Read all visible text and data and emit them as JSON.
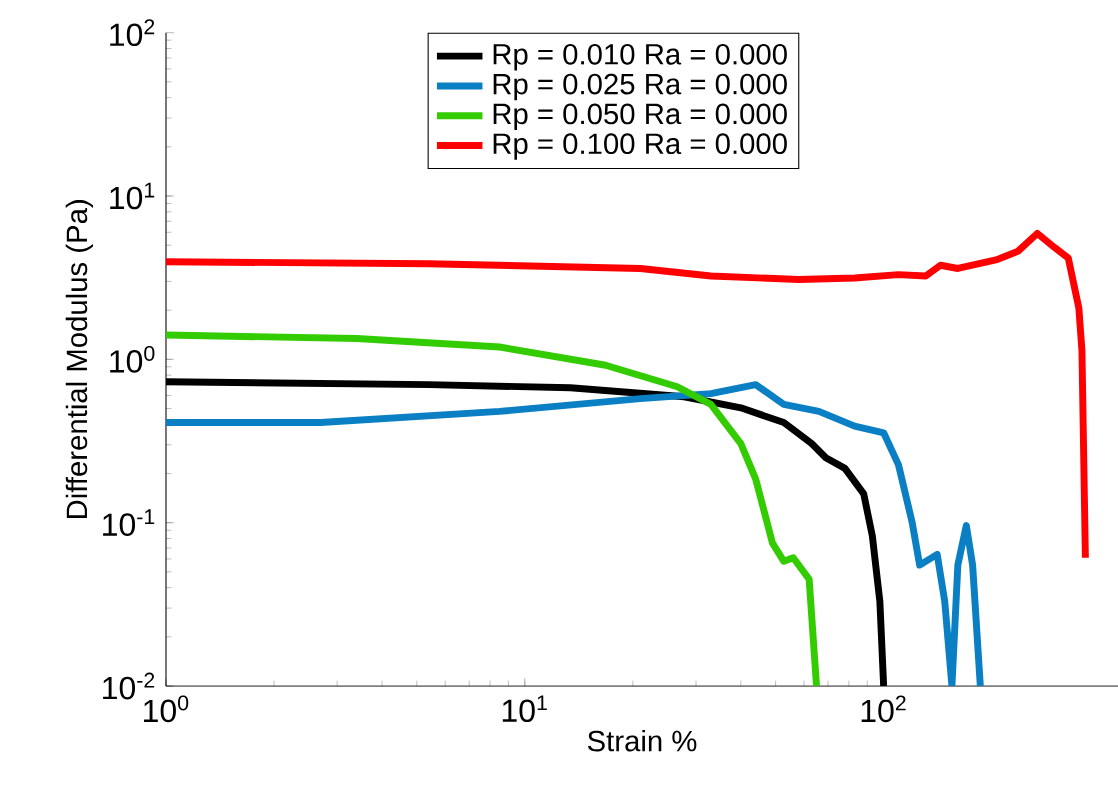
{
  "chart_data": {
    "type": "line",
    "xlabel": "Strain %",
    "ylabel": "Differential Modulus (Pa)",
    "log": "xy",
    "legend": "top",
    "grid": false,
    "xlim": [
      1,
      450
    ],
    "ylim": [
      0.01,
      100
    ],
    "xticks": [
      {
        "value": 1,
        "label": "10$^{0}$"
      },
      {
        "value": 10,
        "label": "10$^{1}$"
      },
      {
        "value": 100,
        "label": "10$^{2}$"
      }
    ],
    "yticks": [
      {
        "value": 0.01,
        "label": "10$^{-2}$"
      },
      {
        "value": 0.1,
        "label": "10$^{-1}$"
      },
      {
        "value": 1,
        "label": "10$^{0}$"
      },
      {
        "value": 10,
        "label": "10$^{1}$"
      },
      {
        "value": 100,
        "label": "10$^{2}$"
      }
    ],
    "series": [
      {
        "name": "Rp = 0.010   Ra = 0.000",
        "color": "#000000",
        "x": [
          1,
          5.4,
          13.4,
          27.8,
          40,
          52.7,
          63,
          69,
          78,
          88,
          93,
          97.6,
          100
        ],
        "values": [
          0.73,
          0.7,
          0.67,
          0.59,
          0.505,
          0.41,
          0.305,
          0.25,
          0.215,
          0.15,
          0.083,
          0.033,
          0.01
        ]
      },
      {
        "name": "Rp = 0.025   Ra = 0.000",
        "color": "#0b7fc4",
        "x": [
          1,
          2.7,
          8.5,
          21,
          33,
          44,
          52.7,
          66,
          83,
          100,
          110,
          120,
          126,
          141,
          148,
          155,
          161,
          170,
          177,
          186
        ],
        "values": [
          0.41,
          0.41,
          0.48,
          0.575,
          0.617,
          0.7,
          0.53,
          0.48,
          0.39,
          0.355,
          0.226,
          0.101,
          0.055,
          0.064,
          0.033,
          0.01,
          0.055,
          0.096,
          0.055,
          0.01
        ]
      },
      {
        "name": "Rp = 0.050   Ra = 0.000",
        "color": "#33cc00",
        "x": [
          1,
          3.4,
          8.5,
          16.8,
          26.6,
          33,
          40,
          44,
          49,
          52.7,
          56,
          62,
          65
        ],
        "values": [
          1.41,
          1.34,
          1.19,
          0.92,
          0.68,
          0.53,
          0.305,
          0.185,
          0.075,
          0.058,
          0.061,
          0.045,
          0.01
        ]
      },
      {
        "name": "Rp = 0.100   Ra = 0.000",
        "color": "#ff0000",
        "x": [
          1,
          5.4,
          21,
          33,
          58,
          83,
          110,
          131,
          144,
          161,
          207,
          237,
          268,
          299,
          327,
          350,
          357,
          365
        ],
        "values": [
          3.96,
          3.85,
          3.6,
          3.24,
          3.08,
          3.15,
          3.3,
          3.24,
          3.77,
          3.6,
          4.08,
          4.6,
          5.9,
          4.85,
          4.17,
          2.06,
          1.13,
          0.061
        ]
      }
    ]
  }
}
